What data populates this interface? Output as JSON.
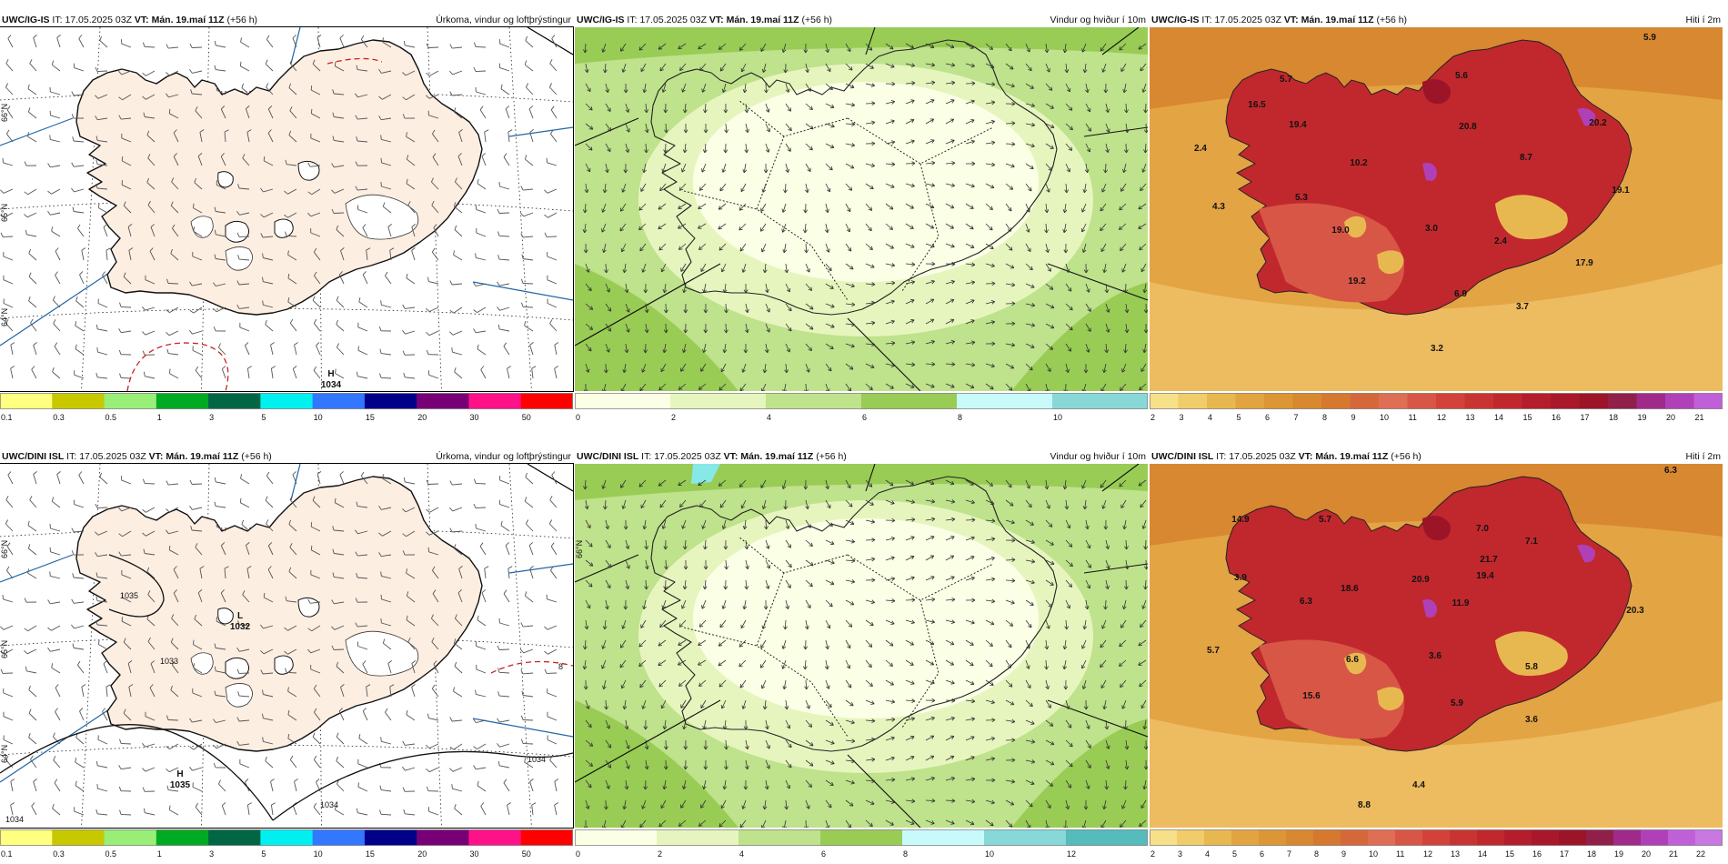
{
  "panels": [
    {
      "model": "UWC/IG-IS",
      "it_label": "IT:",
      "it": "17.05.2025 03Z",
      "vt_label": "VT:",
      "vt": "Mán. 19.maí 11Z",
      "lead": "(+56 h)",
      "title": "Úrkoma, vindur og loftþrýstingur",
      "colorbar": {
        "ticks": [
          "0.1",
          "0.3",
          "0.5",
          "1",
          "3",
          "5",
          "10",
          "15",
          "20",
          "30",
          "50"
        ],
        "colors": [
          "#ffff80",
          "#c8c800",
          "#99ee77",
          "#00aa22",
          "#006644",
          "#00f0f0",
          "#3377ff",
          "#000088",
          "#770077",
          "#ff1188",
          "#ff0000"
        ]
      },
      "pressure_centers": [
        {
          "letter": "H",
          "value": "1034"
        }
      ],
      "lat_labels": [
        "66°N",
        "64°N",
        "65°N"
      ]
    },
    {
      "model": "UWC/IG-IS",
      "it_label": "IT:",
      "it": "17.05.2025 03Z",
      "vt_label": "VT:",
      "vt": "Mán. 19.maí 11Z",
      "lead": "(+56 h)",
      "title": "Vindur og hviður í 10m",
      "colorbar": {
        "ticks": [
          "0",
          "2",
          "4",
          "6",
          "8",
          "10"
        ],
        "colors": [
          "#fbffe6",
          "#e6f5be",
          "#bfe28c",
          "#99cc55",
          "#c8fafa",
          "#88d8d8"
        ]
      }
    },
    {
      "model": "UWC/IG-IS",
      "it_label": "IT:",
      "it": "17.05.2025 03Z",
      "vt_label": "VT:",
      "vt": "Mán. 19.maí 11Z",
      "lead": "(+56 h)",
      "title": "Hiti í 2m",
      "colorbar": {
        "ticks": [
          "2",
          "3",
          "4",
          "5",
          "6",
          "7",
          "8",
          "9",
          "10",
          "11",
          "12",
          "13",
          "14",
          "15",
          "16",
          "17",
          "18",
          "19",
          "20",
          "21"
        ],
        "colors": [
          "#f7e08a",
          "#f0cc6a",
          "#e8b850",
          "#e2a440",
          "#dc9636",
          "#d88830",
          "#d6782e",
          "#d4683a",
          "#de6e54",
          "#d85646",
          "#d2423a",
          "#c83432",
          "#c0282e",
          "#b41e2c",
          "#a8182a",
          "#9c1428",
          "#90204a",
          "#a02a8a",
          "#b040b8",
          "#c060d8"
        ]
      },
      "temps": [
        "5.9",
        "5.7",
        "5.6",
        "16.5",
        "19.4",
        "20.8",
        "20.2",
        "2.4",
        "10.2",
        "8.7",
        "5.3",
        "19.1",
        "4.3",
        "3.0",
        "19.0",
        "2.4",
        "17.9",
        "19.2",
        "6.9",
        "3.7",
        "3.2"
      ]
    },
    {
      "model": "UWC/DINI ISL",
      "it_label": "IT:",
      "it": "17.05.2025 03Z",
      "vt_label": "VT:",
      "vt": "Mán. 19.maí 11Z",
      "lead": "(+56 h)",
      "title": "Úrkoma, vindur og loftþrýstingur",
      "colorbar": {
        "ticks": [
          "0.1",
          "0.3",
          "0.5",
          "1",
          "3",
          "5",
          "10",
          "15",
          "20",
          "30",
          "50"
        ],
        "colors": [
          "#ffff80",
          "#c8c800",
          "#99ee77",
          "#00aa22",
          "#006644",
          "#00f0f0",
          "#3377ff",
          "#000088",
          "#770077",
          "#ff1188",
          "#ff0000"
        ]
      },
      "pressure_centers": [
        {
          "letter": "L",
          "value": "1032"
        },
        {
          "letter": "H",
          "value": "1035"
        }
      ],
      "isobar_labels": [
        "1035",
        "1034",
        "1034",
        "1034",
        "1033",
        "8"
      ],
      "lat_labels": [
        "66°N",
        "64°N",
        "65°N"
      ]
    },
    {
      "model": "UWC/DINI ISL",
      "it_label": "IT:",
      "it": "17.05.2025 03Z",
      "vt_label": "VT:",
      "vt": "Mán. 19.maí 11Z",
      "lead": "(+56 h)",
      "title": "Vindur og hviður í 10m",
      "colorbar": {
        "ticks": [
          "0",
          "2",
          "4",
          "6",
          "8",
          "10",
          "12"
        ],
        "colors": [
          "#fbffe6",
          "#e6f5be",
          "#bfe28c",
          "#99cc55",
          "#c8fafa",
          "#88d8d8",
          "#55bbbb"
        ]
      },
      "lat_labels": [
        "66°N"
      ]
    },
    {
      "model": "UWC/DINI ISL",
      "it_label": "IT:",
      "it": "17.05.2025 03Z",
      "vt_label": "VT:",
      "vt": "Mán. 19.maí 11Z",
      "lead": "(+56 h)",
      "title": "Hiti í 2m",
      "colorbar": {
        "ticks": [
          "2",
          "3",
          "4",
          "5",
          "6",
          "7",
          "8",
          "9",
          "10",
          "11",
          "12",
          "13",
          "14",
          "15",
          "16",
          "17",
          "18",
          "19",
          "20",
          "21",
          "22"
        ],
        "colors": [
          "#f7e08a",
          "#f0cc6a",
          "#e8b850",
          "#e2a440",
          "#dc9636",
          "#d88830",
          "#d6782e",
          "#d4683a",
          "#de6e54",
          "#d85646",
          "#d2423a",
          "#c83432",
          "#c0282e",
          "#b41e2c",
          "#a8182a",
          "#9c1428",
          "#90204a",
          "#a02a8a",
          "#b040b8",
          "#c060d8",
          "#c878e0"
        ]
      },
      "temps": [
        "6.3",
        "14.9",
        "5.7",
        "7.0",
        "7.1",
        "3.9",
        "6.3",
        "18.6",
        "20.9",
        "21.7",
        "19.4",
        "11.9",
        "20.3",
        "5.7",
        "6.6",
        "3.6",
        "5.8",
        "15.6",
        "5.9",
        "3.6",
        "4.4",
        "8.8"
      ]
    }
  ]
}
